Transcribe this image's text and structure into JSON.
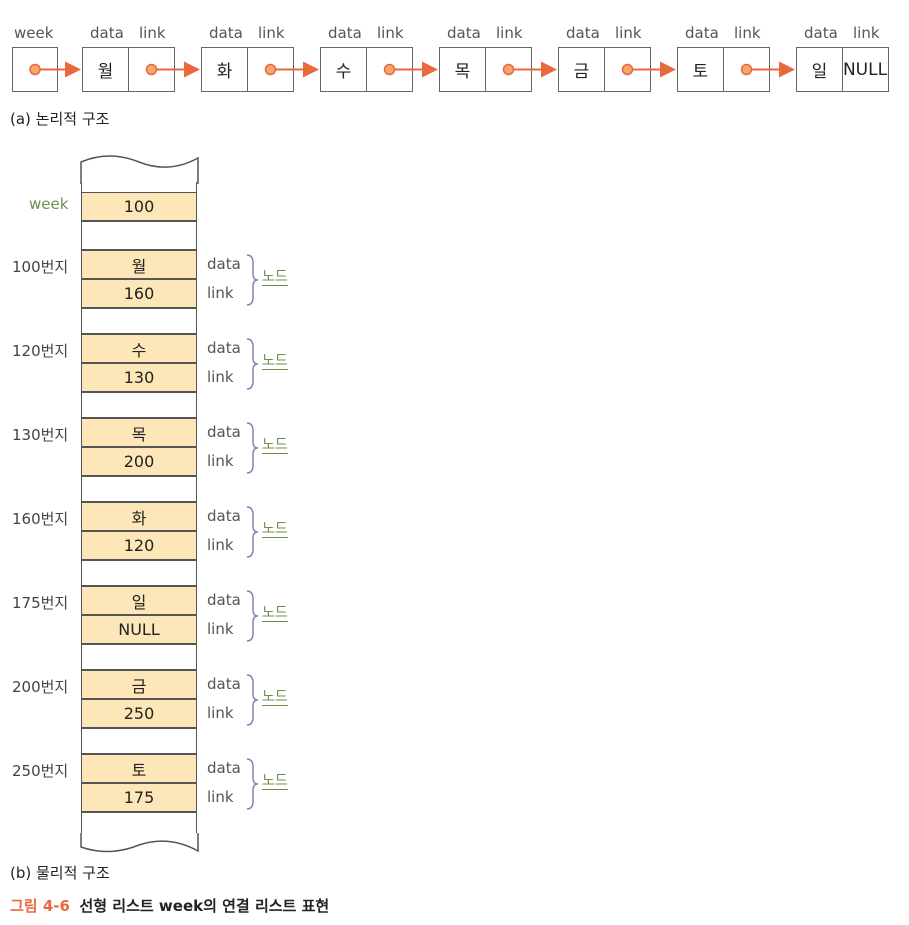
{
  "logical": {
    "head_label": "week",
    "data_label": "data",
    "link_label": "link",
    "nodes": [
      "월",
      "화",
      "수",
      "목",
      "금",
      "토",
      "일"
    ],
    "last_link": "NULL",
    "caption": "(a) 논리적 구조"
  },
  "physical": {
    "head_label": "week",
    "head_value": "100",
    "field_data": "data",
    "field_link": "link",
    "node_label": "노드",
    "nodes": [
      {
        "address": "100번지",
        "data": "월",
        "link": "160"
      },
      {
        "address": "120번지",
        "data": "수",
        "link": "130"
      },
      {
        "address": "130번지",
        "data": "목",
        "link": "200"
      },
      {
        "address": "160번지",
        "data": "화",
        "link": "120"
      },
      {
        "address": "175번지",
        "data": "일",
        "link": "NULL"
      },
      {
        "address": "200번지",
        "data": "금",
        "link": "250"
      },
      {
        "address": "250번지",
        "data": "토",
        "link": "175"
      }
    ],
    "caption": "(b) 물리적 구조"
  },
  "figure": {
    "number": "그림 4-6",
    "title": "선형 리스트 week의 연결 리스트 표현"
  },
  "colors": {
    "accent": "#e8693e",
    "cell_fill": "#fde7b8",
    "node_label": "#6e8f4e",
    "brace": "#8a7fb5"
  }
}
